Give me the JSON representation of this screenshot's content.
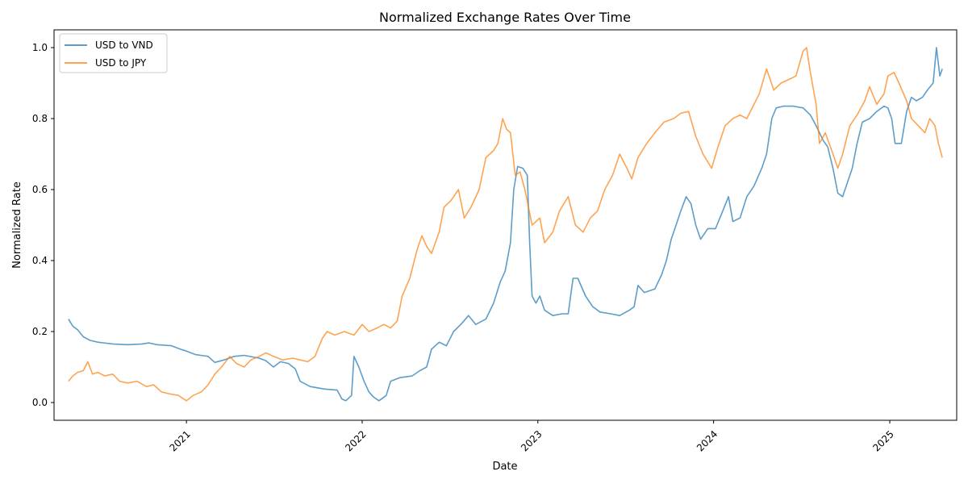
{
  "chart_data": {
    "type": "line",
    "title": "Normalized Exchange Rates Over Time",
    "xlabel": "Date",
    "ylabel": "Normalized Rate",
    "xlim": [
      "2020-04-01",
      "2025-05-20"
    ],
    "ylim": [
      -0.05,
      1.05
    ],
    "x_ticks": [
      "2021-01-01",
      "2022-01-01",
      "2023-01-01",
      "2024-01-01",
      "2025-01-01"
    ],
    "x_tick_labels": [
      "2021",
      "2022",
      "2023",
      "2024",
      "2025"
    ],
    "y_ticks": [
      0.0,
      0.2,
      0.4,
      0.6,
      0.8,
      1.0
    ],
    "y_tick_labels": [
      "0.0",
      "0.2",
      "0.4",
      "0.6",
      "0.8",
      "1.0"
    ],
    "grid": false,
    "legend": "top-left",
    "series": [
      {
        "name": "USD to VND",
        "color": "#1f77b4",
        "points": [
          [
            "2020-05-01",
            0.235
          ],
          [
            "2020-05-10",
            0.215
          ],
          [
            "2020-05-20",
            0.205
          ],
          [
            "2020-06-01",
            0.185
          ],
          [
            "2020-06-15",
            0.175
          ],
          [
            "2020-07-01",
            0.17
          ],
          [
            "2020-08-01",
            0.165
          ],
          [
            "2020-09-01",
            0.163
          ],
          [
            "2020-10-01",
            0.165
          ],
          [
            "2020-10-15",
            0.168
          ],
          [
            "2020-11-01",
            0.163
          ],
          [
            "2020-12-01",
            0.16
          ],
          [
            "2020-12-20",
            0.15
          ],
          [
            "2021-01-01",
            0.145
          ],
          [
            "2021-01-20",
            0.135
          ],
          [
            "2021-02-15",
            0.13
          ],
          [
            "2021-03-01",
            0.113
          ],
          [
            "2021-03-20",
            0.12
          ],
          [
            "2021-04-10",
            0.13
          ],
          [
            "2021-05-01",
            0.133
          ],
          [
            "2021-06-01",
            0.125
          ],
          [
            "2021-06-15",
            0.118
          ],
          [
            "2021-07-01",
            0.1
          ],
          [
            "2021-07-15",
            0.115
          ],
          [
            "2021-08-01",
            0.11
          ],
          [
            "2021-08-15",
            0.095
          ],
          [
            "2021-08-25",
            0.06
          ],
          [
            "2021-09-15",
            0.045
          ],
          [
            "2021-10-15",
            0.038
          ],
          [
            "2021-11-10",
            0.035
          ],
          [
            "2021-11-20",
            0.01
          ],
          [
            "2021-11-28",
            0.005
          ],
          [
            "2021-12-10",
            0.02
          ],
          [
            "2021-12-15",
            0.13
          ],
          [
            "2021-12-25",
            0.1
          ],
          [
            "2022-01-05",
            0.06
          ],
          [
            "2022-01-15",
            0.03
          ],
          [
            "2022-01-25",
            0.015
          ],
          [
            "2022-02-05",
            0.005
          ],
          [
            "2022-02-20",
            0.02
          ],
          [
            "2022-03-01",
            0.06
          ],
          [
            "2022-03-20",
            0.07
          ],
          [
            "2022-04-15",
            0.075
          ],
          [
            "2022-05-01",
            0.09
          ],
          [
            "2022-05-15",
            0.1
          ],
          [
            "2022-05-25",
            0.15
          ],
          [
            "2022-06-10",
            0.17
          ],
          [
            "2022-06-25",
            0.16
          ],
          [
            "2022-07-10",
            0.2
          ],
          [
            "2022-07-25",
            0.22
          ],
          [
            "2022-08-10",
            0.245
          ],
          [
            "2022-08-25",
            0.22
          ],
          [
            "2022-09-15",
            0.235
          ],
          [
            "2022-10-01",
            0.28
          ],
          [
            "2022-10-15",
            0.34
          ],
          [
            "2022-10-25",
            0.37
          ],
          [
            "2022-11-05",
            0.45
          ],
          [
            "2022-11-12",
            0.6
          ],
          [
            "2022-11-20",
            0.665
          ],
          [
            "2022-12-01",
            0.66
          ],
          [
            "2022-12-10",
            0.64
          ],
          [
            "2022-12-15",
            0.45
          ],
          [
            "2022-12-20",
            0.3
          ],
          [
            "2022-12-28",
            0.28
          ],
          [
            "2023-01-05",
            0.3
          ],
          [
            "2023-01-15",
            0.26
          ],
          [
            "2023-02-01",
            0.245
          ],
          [
            "2023-02-20",
            0.25
          ],
          [
            "2023-03-05",
            0.25
          ],
          [
            "2023-03-15",
            0.35
          ],
          [
            "2023-03-25",
            0.35
          ],
          [
            "2023-04-10",
            0.3
          ],
          [
            "2023-04-25",
            0.27
          ],
          [
            "2023-05-10",
            0.255
          ],
          [
            "2023-06-01",
            0.25
          ],
          [
            "2023-06-20",
            0.245
          ],
          [
            "2023-07-10",
            0.26
          ],
          [
            "2023-07-20",
            0.27
          ],
          [
            "2023-07-28",
            0.33
          ],
          [
            "2023-08-10",
            0.31
          ],
          [
            "2023-09-01",
            0.32
          ],
          [
            "2023-09-15",
            0.36
          ],
          [
            "2023-09-25",
            0.4
          ],
          [
            "2023-10-05",
            0.46
          ],
          [
            "2023-10-15",
            0.5
          ],
          [
            "2023-10-25",
            0.54
          ],
          [
            "2023-11-05",
            0.58
          ],
          [
            "2023-11-15",
            0.56
          ],
          [
            "2023-11-25",
            0.5
          ],
          [
            "2023-12-05",
            0.46
          ],
          [
            "2023-12-20",
            0.49
          ],
          [
            "2024-01-05",
            0.49
          ],
          [
            "2024-01-20",
            0.54
          ],
          [
            "2024-02-01",
            0.58
          ],
          [
            "2024-02-10",
            0.51
          ],
          [
            "2024-02-25",
            0.52
          ],
          [
            "2024-03-10",
            0.58
          ],
          [
            "2024-03-25",
            0.61
          ],
          [
            "2024-04-10",
            0.66
          ],
          [
            "2024-04-20",
            0.7
          ],
          [
            "2024-05-01",
            0.8
          ],
          [
            "2024-05-10",
            0.83
          ],
          [
            "2024-05-25",
            0.835
          ],
          [
            "2024-06-15",
            0.835
          ],
          [
            "2024-07-05",
            0.83
          ],
          [
            "2024-07-20",
            0.81
          ],
          [
            "2024-08-01",
            0.78
          ],
          [
            "2024-08-15",
            0.74
          ],
          [
            "2024-08-25",
            0.72
          ],
          [
            "2024-09-05",
            0.66
          ],
          [
            "2024-09-15",
            0.59
          ],
          [
            "2024-09-25",
            0.58
          ],
          [
            "2024-10-05",
            0.62
          ],
          [
            "2024-10-15",
            0.66
          ],
          [
            "2024-10-25",
            0.73
          ],
          [
            "2024-11-05",
            0.79
          ],
          [
            "2024-11-20",
            0.8
          ],
          [
            "2024-12-05",
            0.82
          ],
          [
            "2024-12-20",
            0.835
          ],
          [
            "2024-12-28",
            0.83
          ],
          [
            "2025-01-05",
            0.8
          ],
          [
            "2025-01-12",
            0.73
          ],
          [
            "2025-01-25",
            0.73
          ],
          [
            "2025-02-05",
            0.82
          ],
          [
            "2025-02-15",
            0.86
          ],
          [
            "2025-02-25",
            0.85
          ],
          [
            "2025-03-10",
            0.86
          ],
          [
            "2025-03-20",
            0.88
          ],
          [
            "2025-04-01",
            0.9
          ],
          [
            "2025-04-08",
            1.0
          ],
          [
            "2025-04-15",
            0.92
          ],
          [
            "2025-04-20",
            0.94
          ]
        ]
      },
      {
        "name": "USD to JPY",
        "color": "#ff7f0e",
        "points": [
          [
            "2020-05-01",
            0.06
          ],
          [
            "2020-05-10",
            0.075
          ],
          [
            "2020-05-20",
            0.085
          ],
          [
            "2020-06-01",
            0.09
          ],
          [
            "2020-06-10",
            0.115
          ],
          [
            "2020-06-20",
            0.08
          ],
          [
            "2020-07-01",
            0.085
          ],
          [
            "2020-07-15",
            0.075
          ],
          [
            "2020-08-01",
            0.08
          ],
          [
            "2020-08-15",
            0.06
          ],
          [
            "2020-09-01",
            0.055
          ],
          [
            "2020-09-20",
            0.06
          ],
          [
            "2020-10-10",
            0.045
          ],
          [
            "2020-10-25",
            0.05
          ],
          [
            "2020-11-10",
            0.03
          ],
          [
            "2020-11-25",
            0.025
          ],
          [
            "2020-12-15",
            0.02
          ],
          [
            "2021-01-01",
            0.005
          ],
          [
            "2021-01-15",
            0.02
          ],
          [
            "2021-02-01",
            0.03
          ],
          [
            "2021-02-15",
            0.05
          ],
          [
            "2021-03-01",
            0.08
          ],
          [
            "2021-03-15",
            0.1
          ],
          [
            "2021-04-01",
            0.13
          ],
          [
            "2021-04-15",
            0.11
          ],
          [
            "2021-05-01",
            0.1
          ],
          [
            "2021-05-15",
            0.12
          ],
          [
            "2021-06-01",
            0.13
          ],
          [
            "2021-06-15",
            0.14
          ],
          [
            "2021-07-01",
            0.13
          ],
          [
            "2021-07-20",
            0.12
          ],
          [
            "2021-08-10",
            0.125
          ],
          [
            "2021-08-25",
            0.12
          ],
          [
            "2021-09-10",
            0.115
          ],
          [
            "2021-09-25",
            0.13
          ],
          [
            "2021-10-10",
            0.18
          ],
          [
            "2021-10-20",
            0.2
          ],
          [
            "2021-11-05",
            0.19
          ],
          [
            "2021-11-25",
            0.2
          ],
          [
            "2021-12-15",
            0.19
          ],
          [
            "2022-01-01",
            0.22
          ],
          [
            "2022-01-15",
            0.2
          ],
          [
            "2022-02-01",
            0.21
          ],
          [
            "2022-02-15",
            0.22
          ],
          [
            "2022-03-01",
            0.21
          ],
          [
            "2022-03-15",
            0.23
          ],
          [
            "2022-03-25",
            0.3
          ],
          [
            "2022-04-10",
            0.35
          ],
          [
            "2022-04-25",
            0.43
          ],
          [
            "2022-05-05",
            0.47
          ],
          [
            "2022-05-15",
            0.44
          ],
          [
            "2022-05-25",
            0.42
          ],
          [
            "2022-06-10",
            0.48
          ],
          [
            "2022-06-20",
            0.55
          ],
          [
            "2022-07-05",
            0.57
          ],
          [
            "2022-07-20",
            0.6
          ],
          [
            "2022-08-01",
            0.52
          ],
          [
            "2022-08-15",
            0.55
          ],
          [
            "2022-09-01",
            0.6
          ],
          [
            "2022-09-15",
            0.69
          ],
          [
            "2022-10-01",
            0.71
          ],
          [
            "2022-10-10",
            0.73
          ],
          [
            "2022-10-20",
            0.8
          ],
          [
            "2022-10-28",
            0.77
          ],
          [
            "2022-11-05",
            0.76
          ],
          [
            "2022-11-15",
            0.64
          ],
          [
            "2022-11-25",
            0.65
          ],
          [
            "2022-12-05",
            0.6
          ],
          [
            "2022-12-20",
            0.5
          ],
          [
            "2023-01-05",
            0.52
          ],
          [
            "2023-01-15",
            0.45
          ],
          [
            "2023-02-01",
            0.48
          ],
          [
            "2023-02-15",
            0.54
          ],
          [
            "2023-03-05",
            0.58
          ],
          [
            "2023-03-20",
            0.5
          ],
          [
            "2023-04-05",
            0.48
          ],
          [
            "2023-04-20",
            0.52
          ],
          [
            "2023-05-05",
            0.54
          ],
          [
            "2023-05-20",
            0.6
          ],
          [
            "2023-06-05",
            0.64
          ],
          [
            "2023-06-20",
            0.7
          ],
          [
            "2023-07-05",
            0.66
          ],
          [
            "2023-07-15",
            0.63
          ],
          [
            "2023-07-28",
            0.69
          ],
          [
            "2023-08-15",
            0.73
          ],
          [
            "2023-09-01",
            0.76
          ],
          [
            "2023-09-20",
            0.79
          ],
          [
            "2023-10-10",
            0.8
          ],
          [
            "2023-10-25",
            0.815
          ],
          [
            "2023-11-10",
            0.82
          ],
          [
            "2023-11-25",
            0.75
          ],
          [
            "2023-12-10",
            0.7
          ],
          [
            "2023-12-28",
            0.66
          ],
          [
            "2024-01-10",
            0.72
          ],
          [
            "2024-01-25",
            0.78
          ],
          [
            "2024-02-10",
            0.8
          ],
          [
            "2024-02-25",
            0.81
          ],
          [
            "2024-03-10",
            0.8
          ],
          [
            "2024-03-25",
            0.84
          ],
          [
            "2024-04-05",
            0.87
          ],
          [
            "2024-04-20",
            0.94
          ],
          [
            "2024-05-05",
            0.88
          ],
          [
            "2024-05-20",
            0.9
          ],
          [
            "2024-06-05",
            0.91
          ],
          [
            "2024-06-20",
            0.92
          ],
          [
            "2024-07-05",
            0.99
          ],
          [
            "2024-07-12",
            1.0
          ],
          [
            "2024-07-20",
            0.93
          ],
          [
            "2024-08-01",
            0.84
          ],
          [
            "2024-08-08",
            0.73
          ],
          [
            "2024-08-20",
            0.76
          ],
          [
            "2024-09-05",
            0.7
          ],
          [
            "2024-09-15",
            0.66
          ],
          [
            "2024-09-25",
            0.7
          ],
          [
            "2024-10-10",
            0.78
          ],
          [
            "2024-10-25",
            0.81
          ],
          [
            "2024-11-10",
            0.85
          ],
          [
            "2024-11-20",
            0.89
          ],
          [
            "2024-12-05",
            0.84
          ],
          [
            "2024-12-20",
            0.87
          ],
          [
            "2024-12-28",
            0.92
          ],
          [
            "2025-01-10",
            0.93
          ],
          [
            "2025-01-20",
            0.9
          ],
          [
            "2025-02-05",
            0.85
          ],
          [
            "2025-02-15",
            0.8
          ],
          [
            "2025-03-01",
            0.78
          ],
          [
            "2025-03-15",
            0.76
          ],
          [
            "2025-03-25",
            0.8
          ],
          [
            "2025-04-05",
            0.78
          ],
          [
            "2025-04-12",
            0.73
          ],
          [
            "2025-04-20",
            0.69
          ]
        ]
      }
    ]
  }
}
